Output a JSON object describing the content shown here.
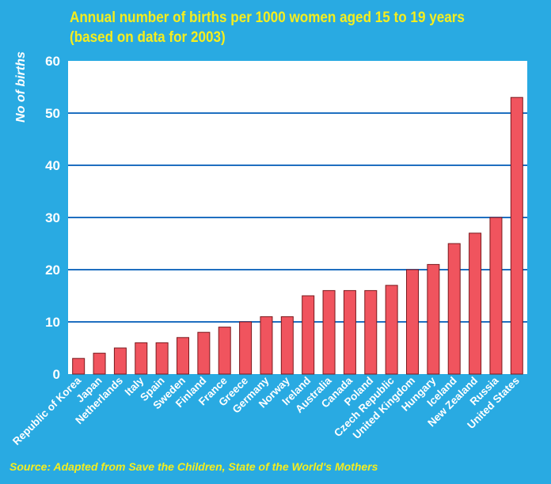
{
  "chart_data": {
    "type": "bar",
    "title_line1": "Annual number of births per 1000 women aged 15 to 19 years",
    "title_line2": "(based on data for 2003)",
    "ylabel": "No of births",
    "xlabel": "",
    "ylim": [
      0,
      60
    ],
    "yticks": [
      0,
      10,
      20,
      30,
      40,
      50,
      60
    ],
    "grid": true,
    "categories": [
      "Republic of Korea",
      "Japan",
      "Netherlands",
      "Italy",
      "Spain",
      "Sweden",
      "Finland",
      "France",
      "Greece",
      "Germany",
      "Norway",
      "Ireland",
      "Australia",
      "Canada",
      "Poland",
      "Czech Republic",
      "United Kingdom",
      "Hungary",
      "Iceland",
      "New Zealand",
      "Russia",
      "United States"
    ],
    "values": [
      3,
      4,
      5,
      6,
      6,
      7,
      8,
      9,
      10,
      11,
      11,
      15,
      16,
      16,
      16,
      17,
      20,
      21,
      25,
      27,
      30,
      53
    ],
    "source": "Source: Adapted from Save the Children, State of the World's Mothers",
    "colors": {
      "background": "#29aae2",
      "plot_area": "#ffffff",
      "bar": "#f0545e",
      "bar_outline": "#7a1a1e",
      "grid": "#1f6fc0",
      "title": "#f5ee1e",
      "axis_text": "#ffffff"
    }
  }
}
